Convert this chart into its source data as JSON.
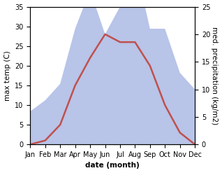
{
  "months": [
    "Jan",
    "Feb",
    "Mar",
    "Apr",
    "May",
    "Jun",
    "Jul",
    "Aug",
    "Sep",
    "Oct",
    "Nov",
    "Dec"
  ],
  "temperature": [
    0,
    1,
    5,
    15,
    22,
    28,
    26,
    26,
    20,
    10,
    3,
    0
  ],
  "precipitation_kg": [
    6,
    8,
    11,
    21,
    28,
    20,
    25,
    33,
    21,
    21,
    13,
    10
  ],
  "temp_color": "#c0504d",
  "precip_fill_color": "#b8c4e8",
  "left_label": "max temp (C)",
  "right_label": "med. precipitation (kg/m2)",
  "xlabel": "date (month)",
  "ylim_left": [
    0,
    35
  ],
  "ylim_right": [
    0,
    25
  ],
  "yticks_left": [
    0,
    5,
    10,
    15,
    20,
    25,
    30,
    35
  ],
  "yticks_right": [
    0,
    5,
    10,
    15,
    20,
    25
  ],
  "bg_color": "#ffffff",
  "temp_linewidth": 1.8,
  "font_size_axis_label": 7.5,
  "font_size_tick": 7
}
